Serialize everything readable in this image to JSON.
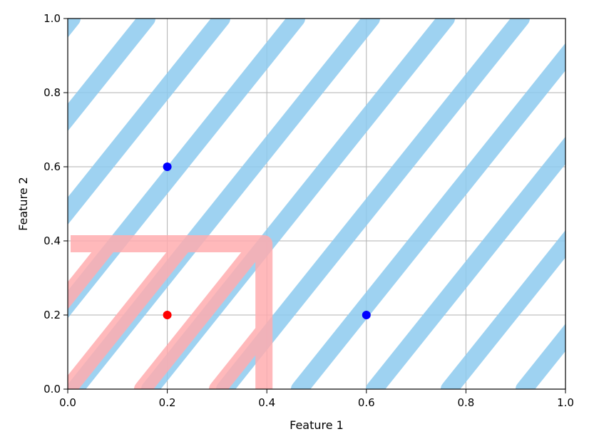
{
  "chart_data": {
    "type": "scatter",
    "title": "",
    "xlabel": "Feature 1",
    "ylabel": "Feature 2",
    "xlim": [
      0.0,
      1.0
    ],
    "ylim": [
      0.0,
      1.0
    ],
    "grid": true,
    "xticks": [
      0.0,
      0.2,
      0.4,
      0.6,
      0.8,
      1.0
    ],
    "yticks": [
      0.0,
      0.2,
      0.4,
      0.6,
      0.8,
      1.0
    ],
    "xtick_labels": [
      "0.0",
      "0.2",
      "0.4",
      "0.6",
      "0.8",
      "1.0"
    ],
    "ytick_labels": [
      "0.0",
      "0.2",
      "0.4",
      "0.6",
      "0.8",
      "1.0"
    ],
    "regions": [
      {
        "class": "blue",
        "color": "#8ecbef",
        "opacity": 0.85,
        "x": [
          0.0,
          1.0
        ],
        "y": [
          0.0,
          1.0
        ],
        "hatch": "diagonal"
      },
      {
        "class": "red",
        "color": "#ffadb0",
        "opacity": 0.85,
        "x": [
          0.0,
          0.4
        ],
        "y": [
          0.0,
          0.4
        ],
        "hatch": "diagonal"
      }
    ],
    "points": [
      {
        "x": 0.2,
        "y": 0.6,
        "class": "blue",
        "color": "#0000ff"
      },
      {
        "x": 0.6,
        "y": 0.2,
        "class": "blue",
        "color": "#0000ff"
      },
      {
        "x": 0.2,
        "y": 0.2,
        "class": "red",
        "color": "#ff0000"
      }
    ]
  }
}
